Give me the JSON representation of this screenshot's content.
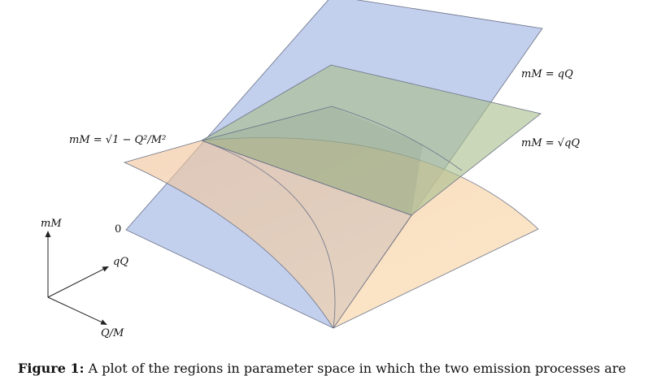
{
  "figure": {
    "labels": {
      "plane_qq": "mM = qQ",
      "plane_sqrt": "mM = √qQ",
      "curve": "mM = √1 − Q²/M²",
      "zero": "0",
      "axis_mm": "mM",
      "axis_qq": "qQ",
      "axis_qm": "Q/M"
    },
    "colors": {
      "plane_blue": "#aabde6",
      "plane_green": "#b5c79a",
      "surface_orange": "#f5c590",
      "edge": "#6b7388"
    }
  },
  "caption": {
    "label": "Figure 1:",
    "text": " A plot of the regions in parameter space in which the two emission processes are"
  }
}
